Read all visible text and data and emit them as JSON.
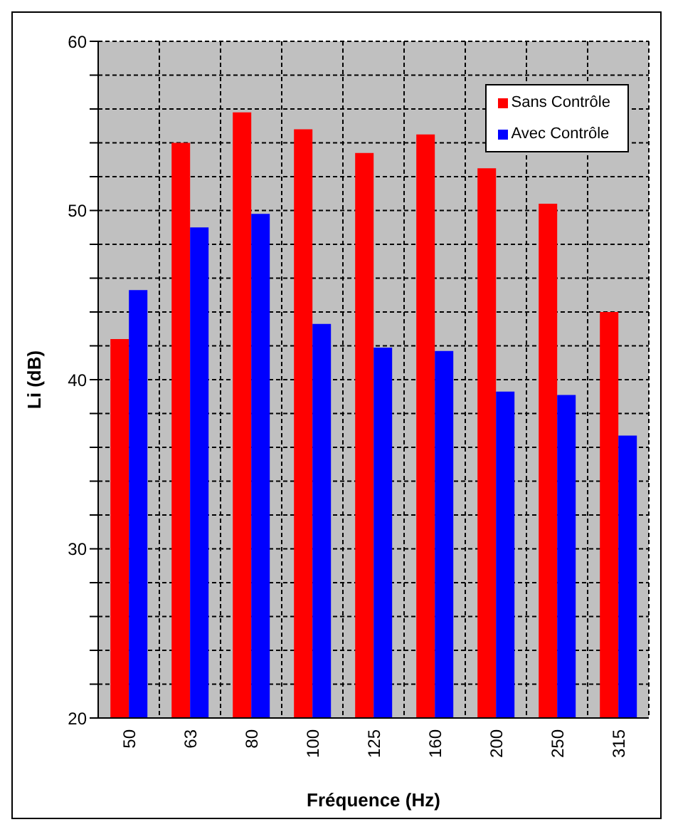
{
  "chart_data": {
    "type": "bar",
    "xlabel": "Fréquence (Hz)",
    "ylabel": "Li (dB)",
    "categories": [
      "50",
      "63",
      "80",
      "100",
      "125",
      "160",
      "200",
      "250",
      "315"
    ],
    "series": [
      {
        "name": "Sans Contrôle",
        "color": "#ff0000",
        "values": [
          42.4,
          54.0,
          55.8,
          54.8,
          53.4,
          54.5,
          52.5,
          50.4,
          44.0
        ]
      },
      {
        "name": "Avec Contrôle",
        "color": "#0000ff",
        "values": [
          45.3,
          49.0,
          49.8,
          43.3,
          41.9,
          41.7,
          39.3,
          39.1,
          36.7
        ]
      }
    ],
    "ylim": [
      20,
      60
    ],
    "yticks": [
      20,
      {
        "value": 22,
        "label": null
      },
      {
        "value": 24,
        "label": null
      },
      {
        "value": 26,
        "label": null
      },
      {
        "value": 28,
        "label": null
      },
      30,
      {
        "value": 32,
        "label": null
      },
      {
        "value": 34,
        "label": null
      },
      {
        "value": 36,
        "label": null
      },
      {
        "value": 38,
        "label": null
      },
      40,
      {
        "value": 42,
        "label": null
      },
      {
        "value": 44,
        "label": null
      },
      {
        "value": 46,
        "label": null
      },
      {
        "value": 48,
        "label": null
      },
      50,
      {
        "value": 52,
        "label": null
      },
      {
        "value": 54,
        "label": null
      },
      {
        "value": 56,
        "label": null
      },
      {
        "value": 58,
        "label": null
      },
      60
    ],
    "grid": true,
    "legend": "top right"
  }
}
